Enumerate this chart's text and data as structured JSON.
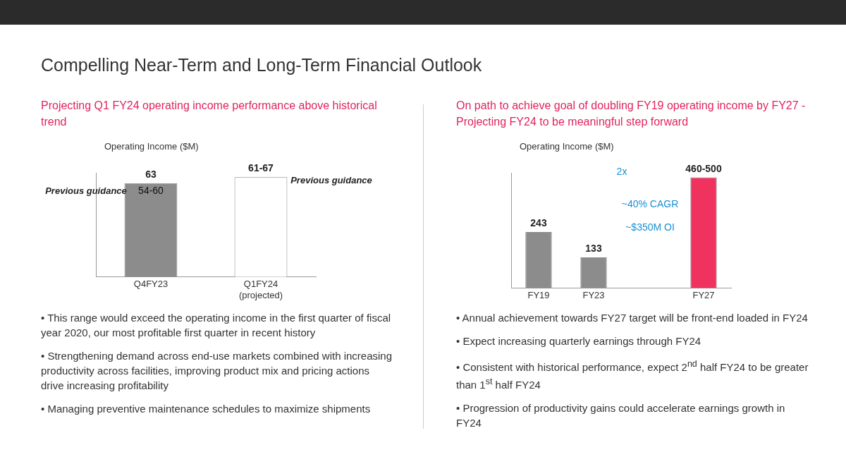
{
  "chart_data": [
    {
      "type": "bar",
      "title": "Compelling Near-Term and Long-Term Financial Outlook",
      "subtitle": "Projecting Q1 FY24 operating income performance above historical trend",
      "ylabel": "Operating Income ($M)",
      "categories": [
        "Q4FY23",
        "Q1FY24\n(projected)"
      ],
      "values": [
        63,
        67
      ],
      "colors": [
        "#8c8c8c",
        "#ffffff"
      ],
      "value_labels": [
        "63",
        "61-67"
      ],
      "grid": false,
      "legend": false,
      "annotations": [
        "54-60",
        "Previous guidance",
        "Previous guidance",
        "• This range would exceed the operating income in the first quarter of fiscal year 2020, our most profitable first quarter in recent history",
        "• Strengthening demand across end-use markets combined with increasing productivity across facilities, improving product mix and pricing actions drive increasing profitability",
        "• Managing preventive maintenance schedules to maximize shipments"
      ]
    },
    {
      "type": "bar",
      "subtitle": "On path to achieve goal of doubling FY19 operating income by FY27 - Projecting FY24 to be meaningful step forward",
      "ylabel": "Operating Income ($M)",
      "categories": [
        "FY19",
        "FY23",
        null,
        "FY27"
      ],
      "values": [
        243,
        133,
        null,
        480
      ],
      "colors": [
        "#8c8c8c",
        "#8c8c8c",
        "#8c8c8c",
        "#f0325f"
      ],
      "value_labels": [
        "243",
        "133",
        null,
        "460-500"
      ],
      "grid": false,
      "legend": false,
      "annotations": [
        "2x",
        "~40% CAGR",
        "~$350M OI",
        "• Annual achievement towards FY27 target will be front-end loaded in FY24",
        "• Expect increasing quarterly earnings through FY24",
        "• Consistent with historical performance, expect 2$^{nd}$ half FY24 to be greater than 1$^{st}$ half FY24",
        "• Progression of productivity gains could accelerate earnings growth in FY24"
      ]
    }
  ]
}
